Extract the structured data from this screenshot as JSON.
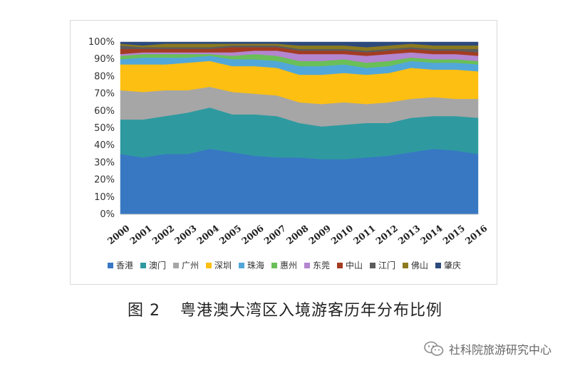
{
  "chart_data": {
    "type": "area",
    "stacked": true,
    "normalized": true,
    "categories": [
      "2000",
      "2001",
      "2002",
      "2003",
      "2004",
      "2005",
      "2006",
      "2007",
      "2008",
      "2009",
      "2010",
      "2011",
      "2012",
      "2013",
      "2014",
      "2015",
      "2016"
    ],
    "y_ticks": [
      "0%",
      "10%",
      "20%",
      "30%",
      "40%",
      "50%",
      "60%",
      "70%",
      "80%",
      "90%",
      "100%"
    ],
    "ylim": [
      0,
      100
    ],
    "legend_position": "bottom",
    "series": [
      {
        "name": "香港",
        "color": "#3878c3",
        "values": [
          35,
          33,
          35,
          35,
          38,
          36,
          34,
          33,
          33,
          32,
          32,
          33,
          34,
          36,
          38,
          37,
          35
        ]
      },
      {
        "name": "澳门",
        "color": "#2e9aa0",
        "values": [
          20,
          22,
          22,
          24,
          24,
          22,
          24,
          24,
          20,
          19,
          20,
          20,
          19,
          20,
          19,
          20,
          21
        ]
      },
      {
        "name": "广州",
        "color": "#a6a6a6",
        "values": [
          17,
          16,
          15,
          13,
          12,
          13,
          12,
          12,
          12,
          13,
          13,
          11,
          12,
          11,
          11,
          10,
          11
        ]
      },
      {
        "name": "深圳",
        "color": "#fdbf12",
        "values": [
          15,
          16,
          15,
          16,
          15,
          15,
          16,
          16,
          16,
          17,
          17,
          17,
          17,
          18,
          16,
          17,
          16
        ]
      },
      {
        "name": "珠海",
        "color": "#52a7d9",
        "values": [
          3,
          4,
          4,
          3,
          3,
          4,
          4,
          4,
          5,
          5,
          5,
          4,
          4,
          4,
          4,
          4,
          4
        ]
      },
      {
        "name": "惠州",
        "color": "#6abf58",
        "values": [
          2,
          2,
          2,
          2,
          1,
          2,
          3,
          3,
          3,
          3,
          3,
          3,
          3,
          2,
          2,
          2,
          2
        ]
      },
      {
        "name": "东莞",
        "color": "#b485d0",
        "values": [
          1,
          1,
          1,
          1,
          1,
          2,
          2,
          3,
          4,
          4,
          3,
          4,
          4,
          3,
          3,
          3,
          3
        ]
      },
      {
        "name": "中山",
        "color": "#a33c22",
        "values": [
          3,
          2,
          2,
          2,
          2,
          3,
          2,
          2,
          2,
          2,
          2,
          2,
          2,
          2,
          2,
          2,
          2
        ]
      },
      {
        "name": "江门",
        "color": "#5c5c5c",
        "values": [
          2,
          1,
          1,
          1,
          1,
          1,
          1,
          1,
          1,
          1,
          1,
          1,
          1,
          1,
          1,
          1,
          2
        ]
      },
      {
        "name": "佛山",
        "color": "#8c7a1f",
        "values": [
          1,
          1,
          2,
          2,
          2,
          1,
          1,
          1,
          2,
          2,
          2,
          2,
          2,
          2,
          2,
          2,
          2
        ]
      },
      {
        "name": "肇庆",
        "color": "#2d4a7c",
        "values": [
          1,
          2,
          1,
          1,
          1,
          1,
          1,
          1,
          2,
          2,
          2,
          3,
          2,
          1,
          2,
          2,
          2
        ]
      }
    ]
  },
  "caption": {
    "figure_no": "图 2",
    "title": "粤港澳大湾区入境游客历年分布比例"
  },
  "watermark": {
    "text": "社科院旅游研究中心"
  }
}
